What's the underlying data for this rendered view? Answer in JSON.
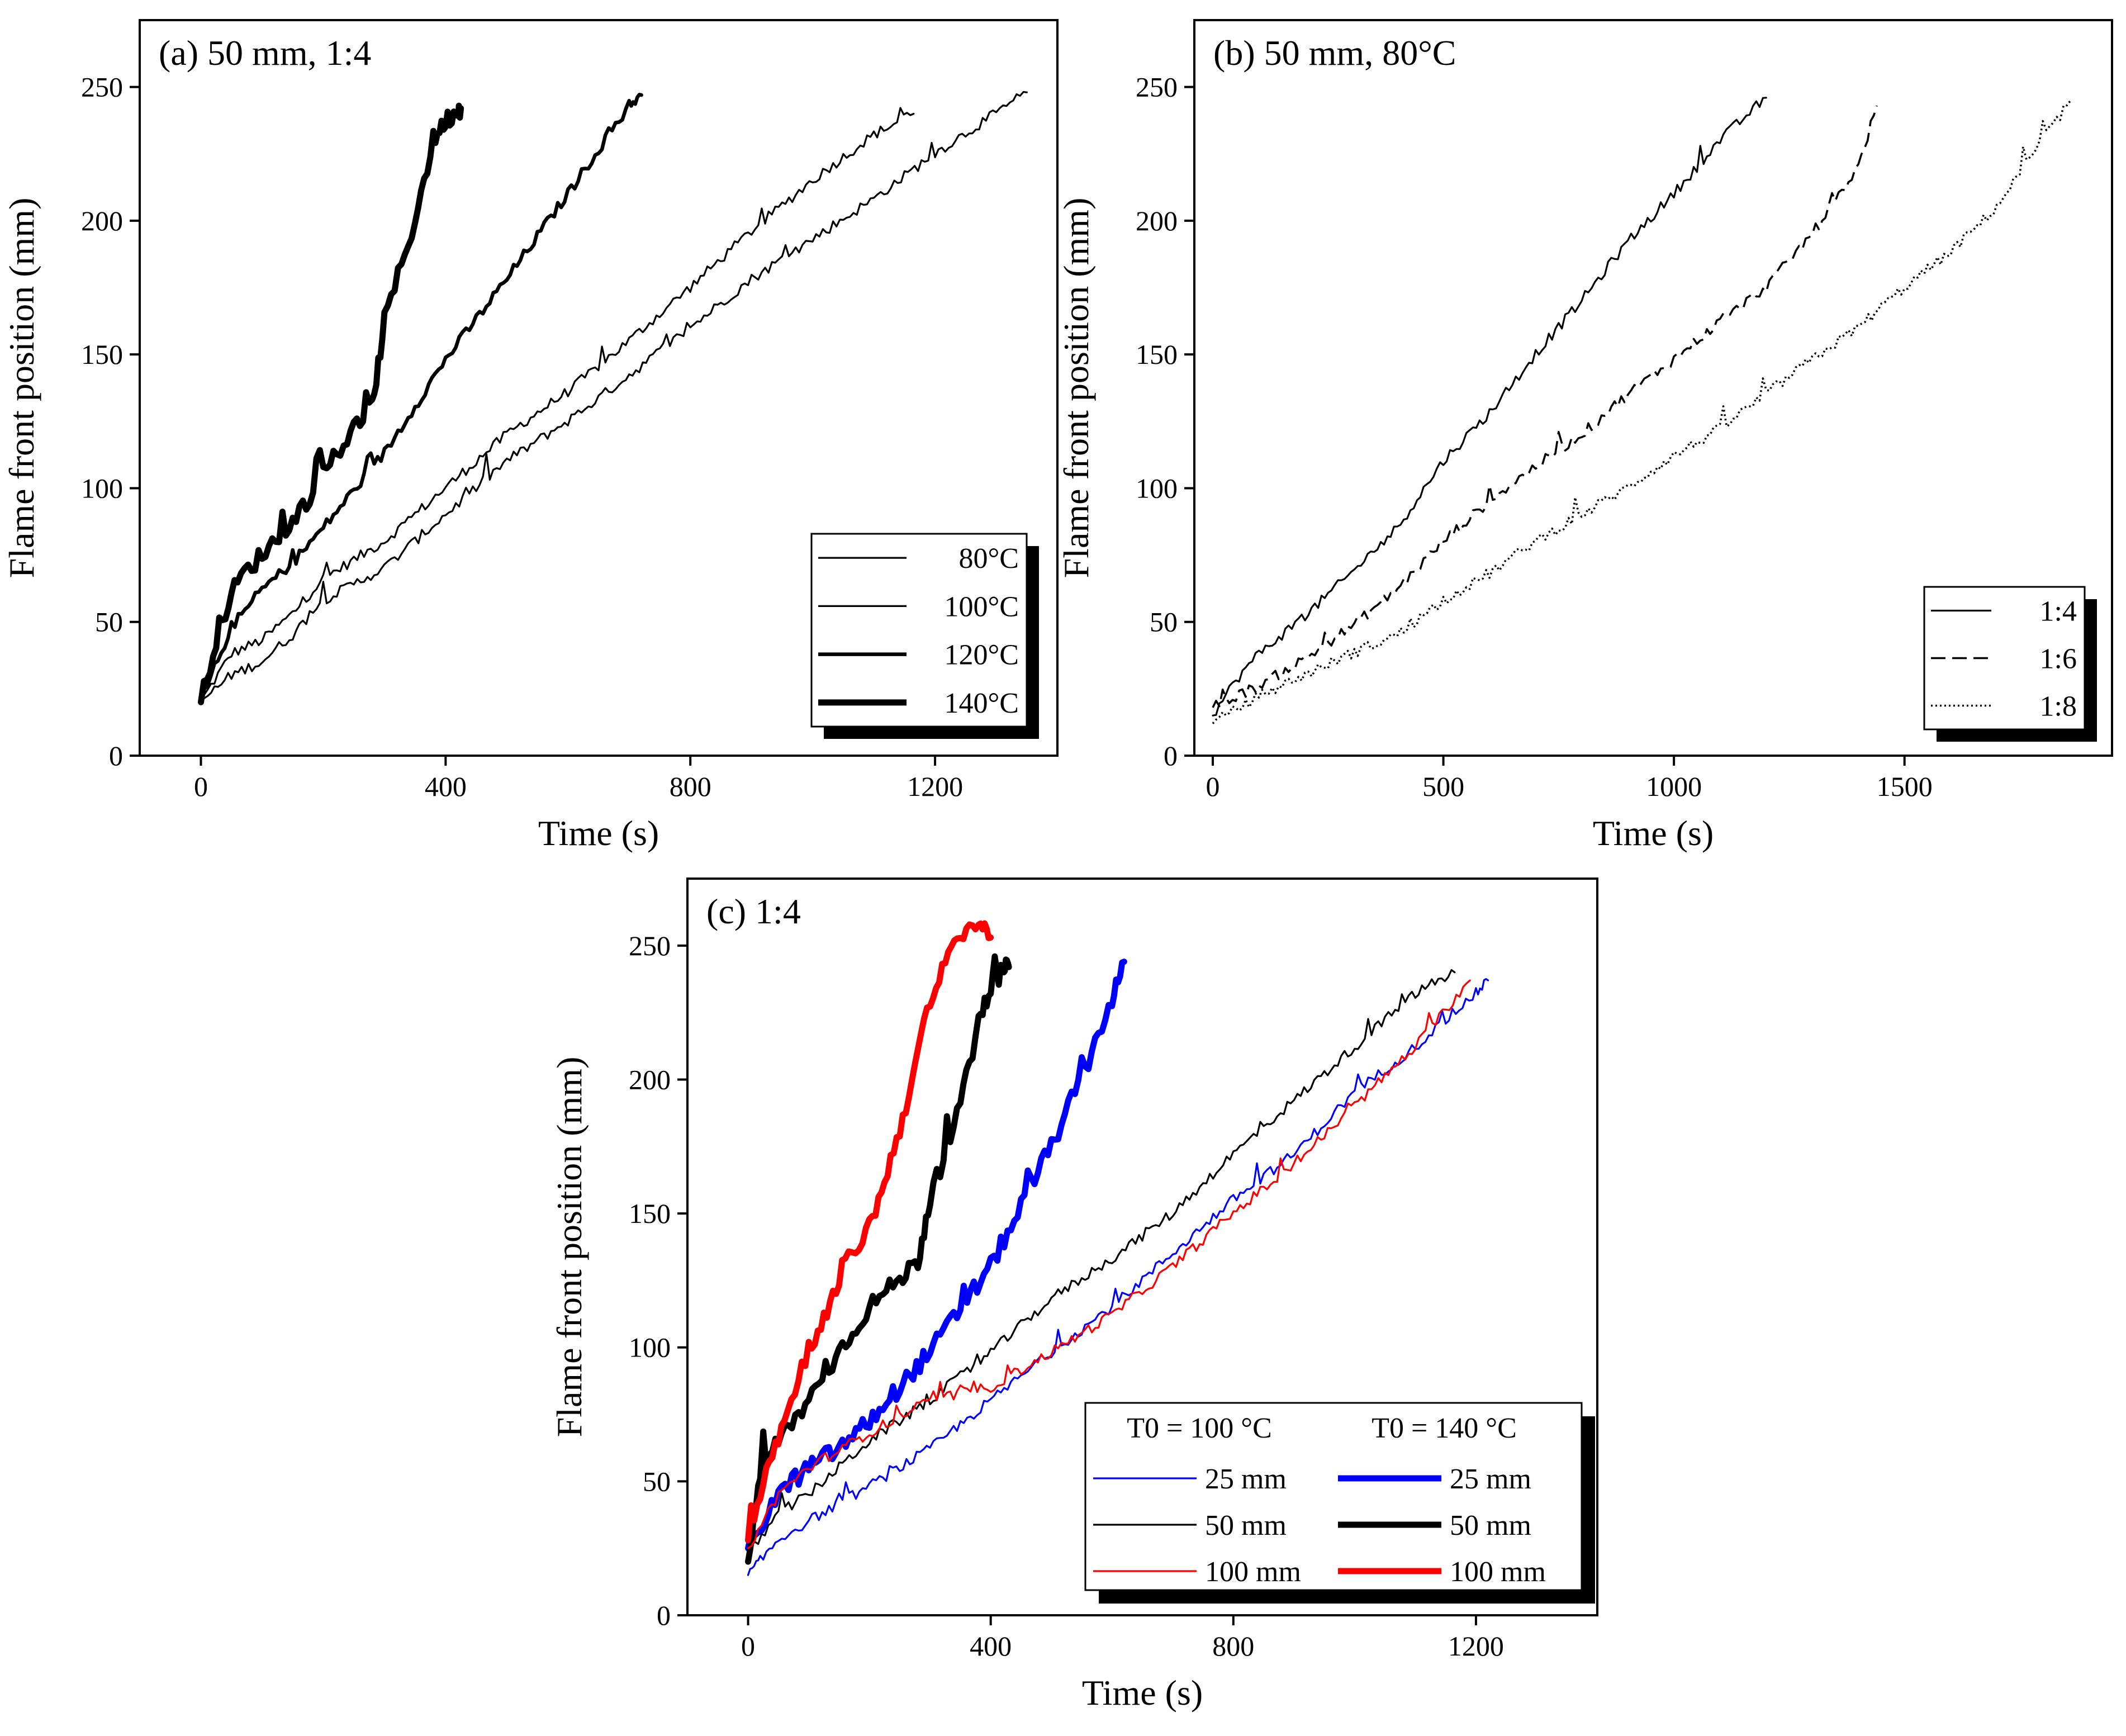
{
  "chart_data": [
    {
      "id": "a",
      "type": "line",
      "title": "(a) 50 mm, 1:4",
      "xlabel": "Time (s)",
      "ylabel": "Flame front position (mm)",
      "xlim": [
        -100,
        1400
      ],
      "ylim": [
        0,
        275
      ],
      "xticks": [
        0,
        400,
        800,
        1200
      ],
      "yticks": [
        0,
        50,
        100,
        150,
        200,
        250
      ],
      "legend": "bottom-right",
      "series": [
        {
          "name": "80°C",
          "color": "#000000",
          "weight": 1,
          "x": [
            0,
            50,
            100,
            150,
            200,
            300,
            400,
            500,
            600,
            700,
            800,
            900,
            1000,
            1100,
            1165
          ],
          "y": [
            20,
            38,
            43,
            53,
            66,
            80,
            100,
            120,
            136,
            155,
            175,
            196,
            215,
            232,
            240
          ]
        },
        {
          "name": "100°C",
          "color": "#000000",
          "weight": 1,
          "x": [
            0,
            50,
            100,
            150,
            200,
            300,
            400,
            500,
            600,
            700,
            800,
            900,
            1000,
            1100,
            1200,
            1300,
            1350
          ],
          "y": [
            20,
            30,
            35,
            45,
            58,
            70,
            90,
            110,
            125,
            142,
            160,
            178,
            193,
            208,
            225,
            240,
            248
          ]
        },
        {
          "name": "120°C",
          "color": "#000000",
          "weight": 2,
          "x": [
            0,
            50,
            100,
            150,
            200,
            300,
            400,
            500,
            600,
            700,
            720
          ],
          "y": [
            20,
            48,
            62,
            72,
            85,
            113,
            148,
            178,
            210,
            243,
            247
          ]
        },
        {
          "name": "140°C",
          "color": "#000000",
          "weight": 3,
          "x": [
            0,
            30,
            60,
            100,
            150,
            200,
            250,
            280,
            300,
            350,
            380,
            400,
            420,
            425
          ],
          "y": [
            20,
            48,
            65,
            75,
            87,
            105,
            122,
            130,
            162,
            200,
            230,
            237,
            241,
            242
          ]
        }
      ]
    },
    {
      "id": "b",
      "type": "line",
      "title": "(b) 50 mm, 80°C",
      "xlabel": "Time (s)",
      "ylabel": "Flame front position (mm)",
      "xlim": [
        -40,
        1950
      ],
      "ylim": [
        0,
        275
      ],
      "xticks": [
        0,
        500,
        1000,
        1500
      ],
      "yticks": [
        0,
        50,
        100,
        150,
        200,
        250
      ],
      "legend": "bottom-right",
      "series": [
        {
          "name": "1:4",
          "color": "#000000",
          "dash": "solid",
          "x": [
            0,
            50,
            100,
            200,
            300,
            400,
            500,
            600,
            700,
            800,
            900,
            1000,
            1100,
            1200
          ],
          "y": [
            15,
            28,
            38,
            52,
            68,
            85,
            110,
            128,
            150,
            170,
            192,
            210,
            230,
            246
          ]
        },
        {
          "name": "1:6",
          "color": "#000000",
          "dash": "dashed",
          "x": [
            0,
            100,
            200,
            300,
            400,
            500,
            600,
            700,
            800,
            900,
            1000,
            1100,
            1200,
            1300,
            1400,
            1440
          ],
          "y": [
            18,
            26,
            36,
            48,
            62,
            80,
            95,
            108,
            120,
            135,
            148,
            162,
            175,
            195,
            220,
            243
          ]
        },
        {
          "name": "1:8",
          "color": "#000000",
          "dash": "dotted",
          "x": [
            0,
            100,
            200,
            300,
            400,
            500,
            600,
            700,
            800,
            900,
            1000,
            1100,
            1200,
            1300,
            1400,
            1500,
            1600,
            1700,
            1800,
            1860
          ],
          "y": [
            12,
            22,
            30,
            38,
            45,
            58,
            68,
            80,
            90,
            100,
            112,
            122,
            135,
            148,
            160,
            175,
            188,
            205,
            230,
            245
          ]
        }
      ]
    },
    {
      "id": "c",
      "type": "line",
      "title": "(c) 1:4",
      "xlabel": "Time (s)",
      "ylabel": "Flame front position (mm)",
      "xlim": [
        -100,
        1400
      ],
      "ylim": [
        0,
        275
      ],
      "xticks": [
        0,
        400,
        800,
        1200
      ],
      "yticks": [
        0,
        50,
        100,
        150,
        200,
        250
      ],
      "legend": "bottom-right",
      "legend_headers": [
        "T0 = 100 °C",
        "T0 = 140 °C"
      ],
      "series": [
        {
          "name": "25 mm",
          "group": "T0 = 100 °C",
          "color": "#0000ff",
          "weight": 1,
          "x": [
            0,
            20,
            50,
            100,
            200,
            300,
            400,
            500,
            600,
            700,
            800,
            900,
            1000,
            1100,
            1200,
            1220
          ],
          "y": [
            15,
            20,
            28,
            35,
            48,
            62,
            80,
            98,
            115,
            135,
            155,
            172,
            195,
            212,
            232,
            237
          ]
        },
        {
          "name": "25 mm",
          "group": "T0 = 140 °C",
          "color": "#0000ff",
          "weight": 3,
          "x": [
            0,
            50,
            100,
            150,
            200,
            300,
            400,
            500,
            550,
            600,
            620
          ],
          "y": [
            25,
            45,
            55,
            62,
            72,
            98,
            130,
            175,
            200,
            230,
            244
          ]
        },
        {
          "name": "50 mm",
          "group": "T0 = 100 °C",
          "color": "#000000",
          "weight": 1,
          "x": [
            0,
            50,
            100,
            150,
            200,
            300,
            400,
            500,
            600,
            700,
            800,
            900,
            1000,
            1100,
            1165
          ],
          "y": [
            22,
            38,
            45,
            55,
            65,
            80,
            98,
            118,
            133,
            150,
            172,
            192,
            212,
            232,
            240
          ]
        },
        {
          "name": "50 mm",
          "group": "T0 = 140 °C",
          "color": "#000000",
          "weight": 3,
          "x": [
            0,
            20,
            50,
            100,
            150,
            200,
            250,
            280,
            300,
            350,
            380,
            400,
            420,
            430
          ],
          "y": [
            20,
            52,
            65,
            80,
            98,
            115,
            125,
            132,
            155,
            190,
            220,
            235,
            240,
            242
          ]
        },
        {
          "name": "100 mm",
          "group": "T0 = 100 °C",
          "color": "#ff0000",
          "weight": 1,
          "x": [
            0,
            50,
            100,
            200,
            300,
            400,
            500,
            600,
            700,
            800,
            900,
            1000,
            1100,
            1190
          ],
          "y": [
            25,
            45,
            55,
            68,
            80,
            85,
            98,
            112,
            130,
            150,
            168,
            190,
            212,
            237
          ]
        },
        {
          "name": "100 mm",
          "group": "T0 = 140 °C",
          "color": "#ff0000",
          "weight": 3,
          "x": [
            0,
            30,
            60,
            100,
            130,
            160,
            200,
            230,
            260,
            290,
            320,
            350,
            380,
            400
          ],
          "y": [
            28,
            55,
            72,
            100,
            112,
            130,
            145,
            165,
            190,
            220,
            240,
            255,
            258,
            253
          ]
        }
      ]
    }
  ]
}
